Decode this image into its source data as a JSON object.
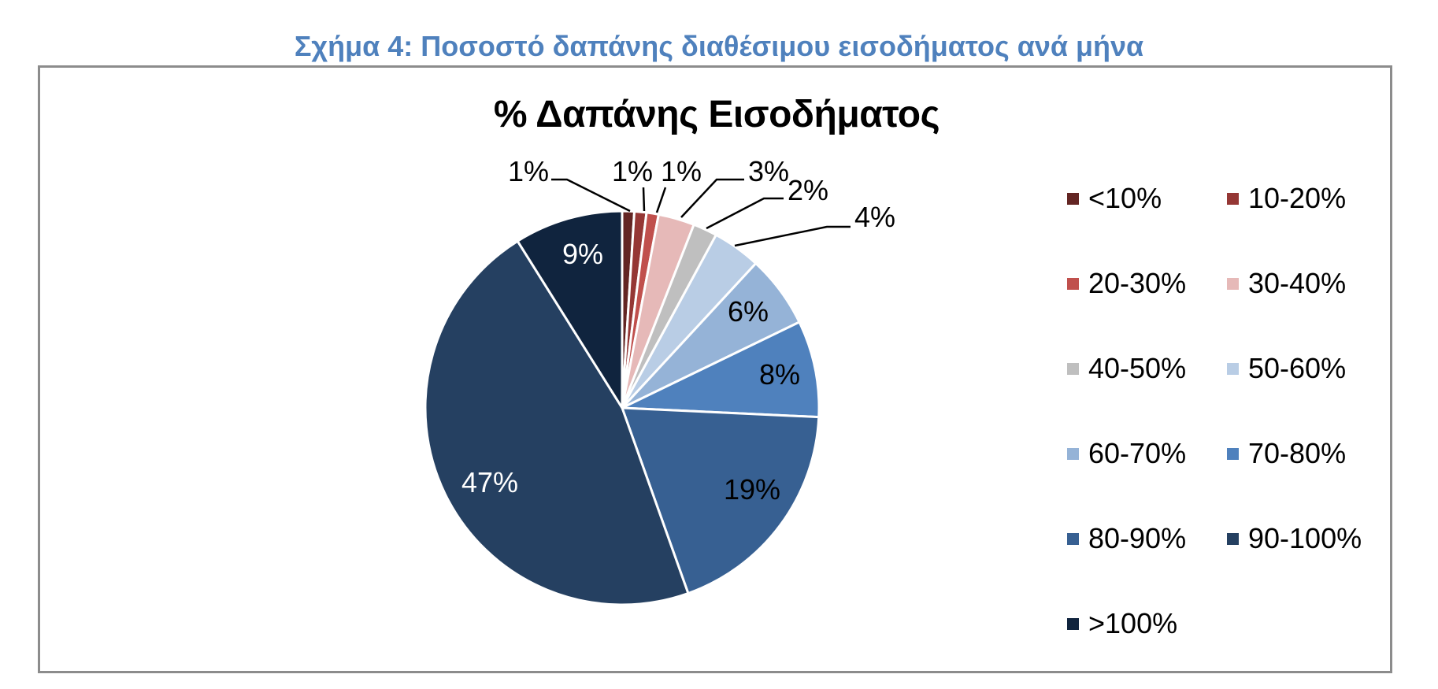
{
  "figure_caption": "Σχήμα 4: Ποσοστό δαπάνης διαθέσιμου εισοδήματος ανά μήνα",
  "chart_data": {
    "type": "pie",
    "title": "% Δαπάνης Εισοδήματος",
    "categories": [
      "<10%",
      "10-20%",
      "20-30%",
      "30-40%",
      "40-50%",
      "50-60%",
      "60-70%",
      "70-80%",
      "80-90%",
      "90-100%",
      ">100%"
    ],
    "values": [
      1,
      1,
      1,
      3,
      2,
      4,
      6,
      8,
      19,
      47,
      9
    ],
    "data_labels": [
      "1%",
      "1%",
      "1%",
      "3%",
      "2%",
      "4%",
      "6%",
      "8%",
      "19%",
      "47%",
      "9%"
    ],
    "colors": [
      "#632523",
      "#953735",
      "#c0504d",
      "#e6b9b8",
      "#bfbfbf",
      "#b9cde5",
      "#95b3d7",
      "#4f81bd",
      "#376092",
      "#254061",
      "#10243e"
    ],
    "start_angle": "12 o'clock",
    "direction": "clockwise",
    "legend_position": "right"
  }
}
